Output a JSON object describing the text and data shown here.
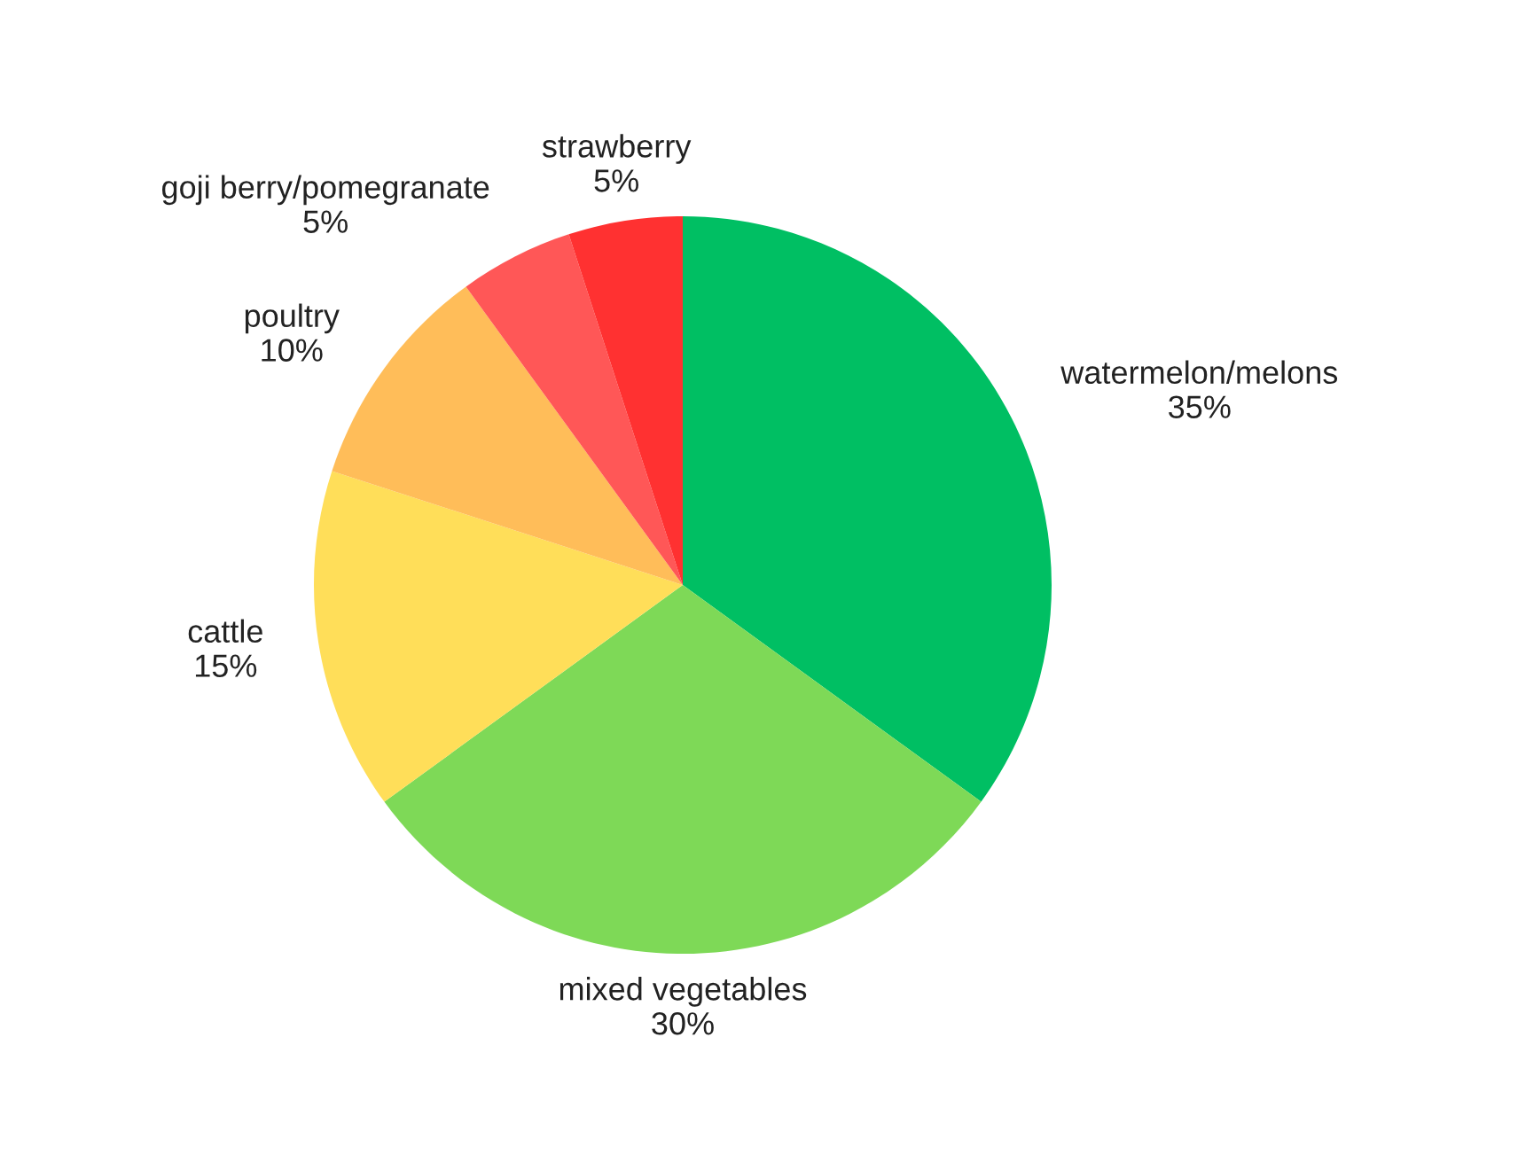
{
  "chart_data": {
    "type": "pie",
    "categories": [
      "watermelon/melons",
      "mixed vegetables",
      "cattle",
      "poultry",
      "goji berry/pomegranate",
      "strawberry"
    ],
    "values": [
      35,
      30,
      15,
      10,
      5,
      5
    ],
    "value_labels": [
      "35%",
      "30%",
      "15%",
      "10%",
      "5%",
      "5%"
    ],
    "colors": [
      "#00bf63",
      "#7ed957",
      "#ffde59",
      "#ffbd59",
      "#ff5757",
      "#ff3131"
    ]
  }
}
